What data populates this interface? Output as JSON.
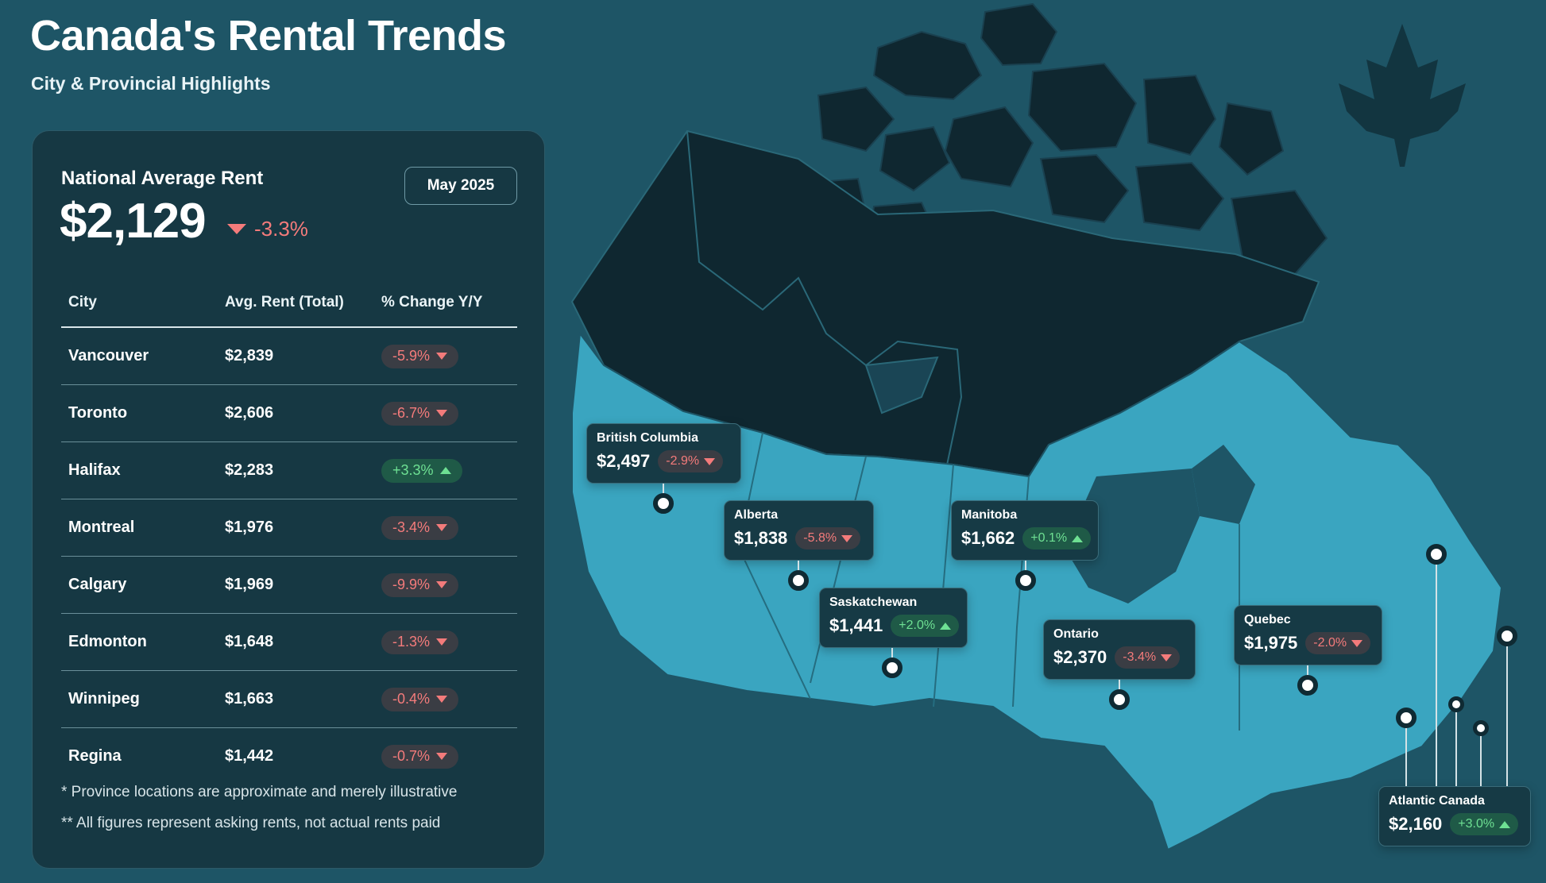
{
  "header": {
    "title": "Canada's Rental Trends",
    "subtitle": "City & Provincial Highlights"
  },
  "panel": {
    "national_label": "National Average Rent",
    "national_value": "$2,129",
    "national_change": "-3.3%",
    "national_direction": "down",
    "date_badge": "May 2025",
    "columns": [
      "City",
      "Avg. Rent (Total)",
      "% Change Y/Y"
    ],
    "rows": [
      {
        "city": "Vancouver",
        "rent": "$2,839",
        "change": "-5.9%",
        "direction": "down"
      },
      {
        "city": "Toronto",
        "rent": "$2,606",
        "change": "-6.7%",
        "direction": "down"
      },
      {
        "city": "Halifax",
        "rent": "$2,283",
        "change": "+3.3%",
        "direction": "up"
      },
      {
        "city": "Montreal",
        "rent": "$1,976",
        "change": "-3.4%",
        "direction": "down"
      },
      {
        "city": "Calgary",
        "rent": "$1,969",
        "change": "-9.9%",
        "direction": "down"
      },
      {
        "city": "Edmonton",
        "rent": "$1,648",
        "change": "-1.3%",
        "direction": "down"
      },
      {
        "city": "Winnipeg",
        "rent": "$1,663",
        "change": "-0.4%",
        "direction": "down"
      },
      {
        "city": "Regina",
        "rent": "$1,442",
        "change": "-0.7%",
        "direction": "down"
      }
    ],
    "footnotes": [
      "* Province locations are approximate and merely illustrative",
      "** All figures represent asking rents, not actual rents paid"
    ]
  },
  "map": {
    "provinces": [
      {
        "name": "British Columbia",
        "value": "$2,497",
        "change": "-2.9%",
        "direction": "down"
      },
      {
        "name": "Alberta",
        "value": "$1,838",
        "change": "-5.8%",
        "direction": "down"
      },
      {
        "name": "Saskatchewan",
        "value": "$1,441",
        "change": "+2.0%",
        "direction": "up"
      },
      {
        "name": "Manitoba",
        "value": "$1,662",
        "change": "+0.1%",
        "direction": "up"
      },
      {
        "name": "Ontario",
        "value": "$2,370",
        "change": "-3.4%",
        "direction": "down"
      },
      {
        "name": "Quebec",
        "value": "$1,975",
        "change": "-2.0%",
        "direction": "down"
      },
      {
        "name": "Atlantic Canada",
        "value": "$2,160",
        "change": "+3.0%",
        "direction": "up"
      }
    ]
  },
  "colors": {
    "background": "#1e5566",
    "panel": "#163843",
    "negative": "#f47b7b",
    "positive": "#6ee093",
    "territories": "#0f2730",
    "provinces": "#3aa5c0"
  },
  "icons": [
    "maple-leaf-icon",
    "pin-icon",
    "triangle-down-icon",
    "triangle-up-icon"
  ]
}
